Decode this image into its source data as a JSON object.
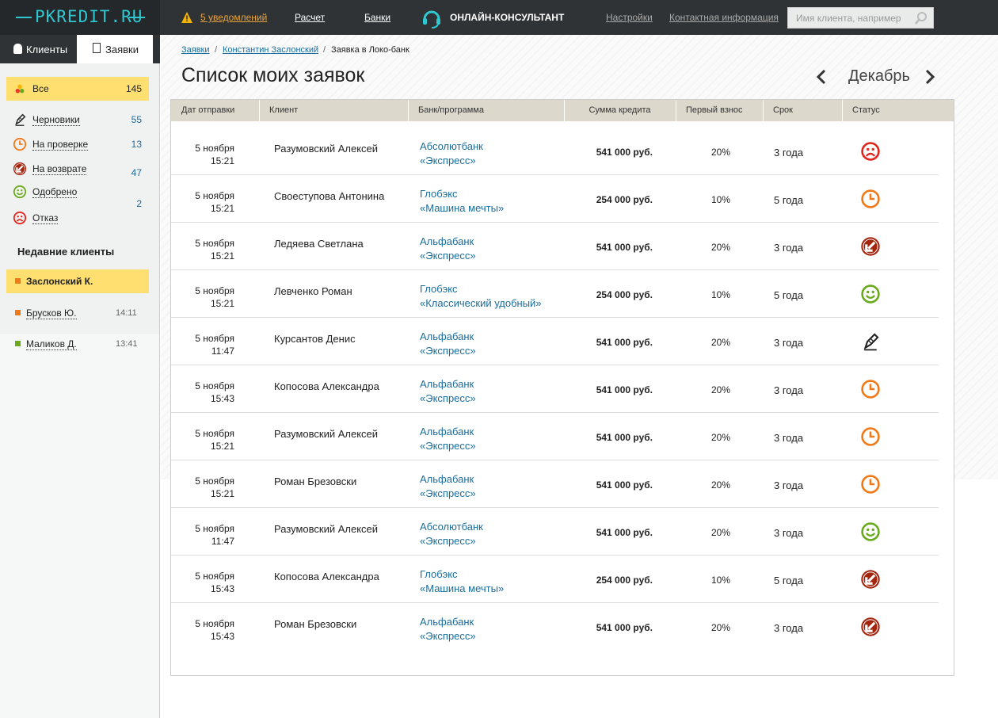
{
  "header": {
    "logo": "PKREDIT.RU",
    "notifications": "5 уведомлений",
    "nav": [
      "Расчет",
      "Банки"
    ],
    "consultant": "ОНЛАЙН-КОНСУЛЬТАНТ",
    "links": [
      "Настройки",
      "Контактная информация"
    ],
    "search_placeholder": "Имя клиента, например"
  },
  "sidebar": {
    "tabs": [
      "Клиенты",
      "Заявки"
    ],
    "filters": [
      {
        "label": "Все",
        "count": 145
      },
      {
        "label": "Черновики",
        "count": 55
      },
      {
        "label": "На проверке",
        "count": 13
      },
      {
        "label": "На возврате",
        "count": 47
      },
      {
        "label": "Одобрено",
        "count": 2
      },
      {
        "label": "Отказ"
      }
    ],
    "recent_title": "Недавние клиенты",
    "recent": [
      {
        "name": "Заслонский К."
      },
      {
        "name": "Брусков Ю.",
        "time": "14:11"
      },
      {
        "name": "Маликов Д.",
        "time": "13:41"
      }
    ]
  },
  "breadcrumbs": [
    "Заявки",
    "Константин Заслонский",
    "Заявка в Локо-банк"
  ],
  "title": "Список моих заявок",
  "month": "Декабрь",
  "table": {
    "columns": [
      "Дат отправки",
      "Клиент",
      "Банк/программа",
      "Сумма кредита",
      "Первый взнос",
      "Срок",
      "Статус"
    ],
    "rows": [
      {
        "date": "5 ноября",
        "time": "15:21",
        "client": "Разумовский Алексей",
        "bank": "Абсолютбанк",
        "program": "«Экспресс»",
        "amount": "541 000 руб.",
        "down": "20%",
        "term": "3 года",
        "status": "Отказ"
      },
      {
        "date": "5 ноября",
        "time": "15:21",
        "client": "Своеступова Антонина",
        "bank": "Глобэкс",
        "program": "«Машина мечты»",
        "amount": "254 000 руб.",
        "down": "10%",
        "term": "5 года",
        "status": "На проверке"
      },
      {
        "date": "5 ноября",
        "time": "15:21",
        "client": "Ледяева Светлана",
        "bank": "Альфабанк",
        "program": "«Экспресс»",
        "amount": "541 000 руб.",
        "down": "20%",
        "term": "3 года",
        "status": "На возврате"
      },
      {
        "date": "5 ноября",
        "time": "15:21",
        "client": "Левченко Роман",
        "bank": "Глобэкс",
        "program": "«Классический удобный»",
        "amount": "254 000 руб.",
        "down": "10%",
        "term": "5 года",
        "status": "Одобрено"
      },
      {
        "date": "5 ноября",
        "time": "11:47",
        "client": "Курсантов Денис",
        "bank": "Альфабанк",
        "program": "«Экспресс»",
        "amount": "541 000 руб.",
        "down": "20%",
        "term": "3 года",
        "status": "Черновики"
      },
      {
        "date": "5 ноября",
        "time": "15:43",
        "client": "Копосова Александра",
        "bank": "Альфабанк",
        "program": "«Экспресс»",
        "amount": "541 000 руб.",
        "down": "20%",
        "term": "3 года",
        "status": "На проверке"
      },
      {
        "date": "5 ноября",
        "time": "15:21",
        "client": "Разумовский Алексей",
        "bank": "Альфабанк",
        "program": "«Экспресс»",
        "amount": "541 000 руб.",
        "down": "20%",
        "term": "3 года",
        "status": "На проверке"
      },
      {
        "date": "5 ноября",
        "time": "15:21",
        "client": "Роман Брезовски",
        "bank": "Альфабанк",
        "program": "«Экспресс»",
        "amount": "541 000 руб.",
        "down": "20%",
        "term": "3 года",
        "status": "На проверке"
      },
      {
        "date": "5 ноября",
        "time": "11:47",
        "client": "Разумовский Алексей",
        "bank": "Абсолютбанк",
        "program": "«Экспресс»",
        "amount": "541 000 руб.",
        "down": "20%",
        "term": "3 года",
        "status": "Одобрено"
      },
      {
        "date": "5 ноября",
        "time": "15:43",
        "client": "Копосова Александра",
        "bank": "Глобэкс",
        "program": "«Машина мечты»",
        "amount": "254 000 руб.",
        "down": "10%",
        "term": "5 года",
        "status": "На возврате"
      },
      {
        "date": "5 ноября",
        "time": "15:43",
        "client": "Роман Брезовски",
        "bank": "Альфабанк",
        "program": "«Экспресс»",
        "amount": "541 000 руб.",
        "down": "20%",
        "term": "3 года",
        "status": "На возврате"
      }
    ]
  }
}
